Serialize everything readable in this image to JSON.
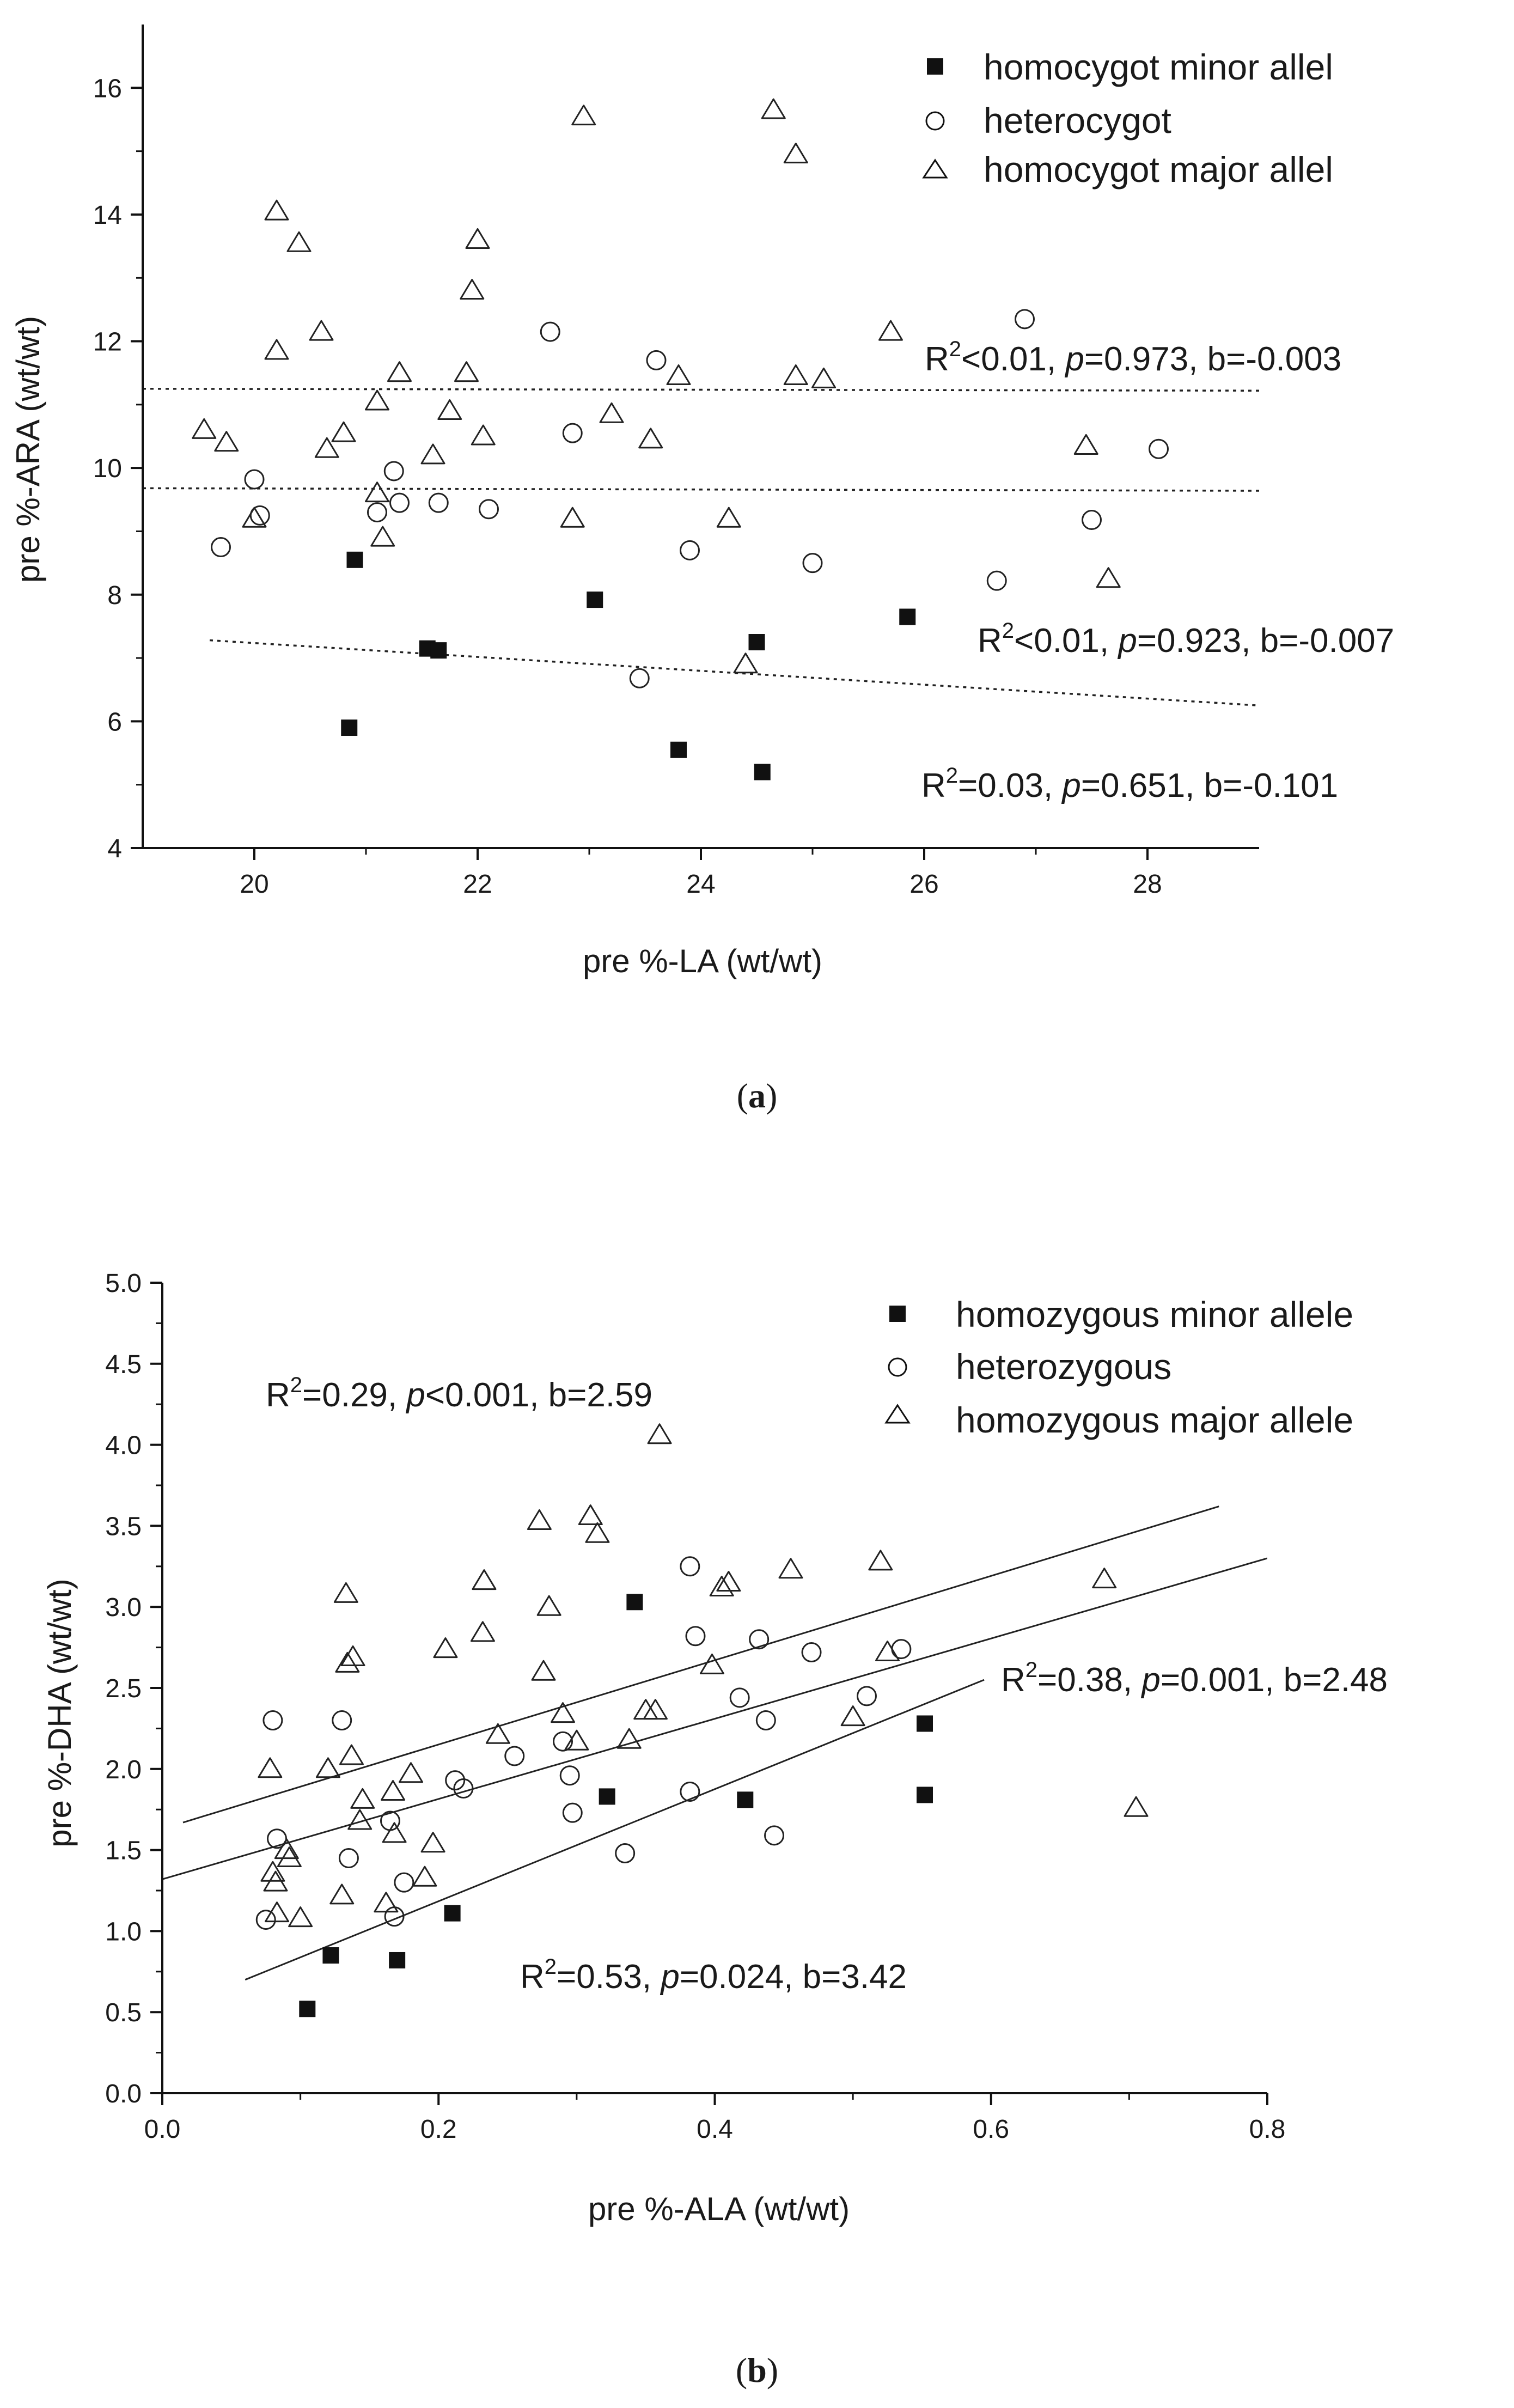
{
  "chart_data": [
    {
      "type": "scatter",
      "panel_label": "a",
      "xlabel": "pre %-LA (wt/wt)",
      "ylabel": "pre %-ARA (wt/wt)",
      "xlim": [
        19,
        29
      ],
      "ylim": [
        4,
        17
      ],
      "xticks": [
        20,
        22,
        24,
        26,
        28
      ],
      "yticks": [
        4,
        6,
        8,
        10,
        12,
        14,
        16
      ],
      "legend_position": "top-right",
      "series": [
        {
          "name": "homocygot minor allel",
          "marker": "filled-square",
          "points": [
            [
              20.9,
              8.55
            ],
            [
              20.85,
              5.9
            ],
            [
              21.55,
              7.15
            ],
            [
              21.65,
              7.12
            ],
            [
              23.05,
              7.92
            ],
            [
              23.8,
              5.55
            ],
            [
              24.5,
              7.25
            ],
            [
              24.55,
              5.2
            ],
            [
              25.85,
              7.65
            ]
          ]
        },
        {
          "name": "heterocygot",
          "marker": "open-circle",
          "points": [
            [
              19.7,
              8.75
            ],
            [
              20.0,
              9.82
            ],
            [
              20.05,
              9.25
            ],
            [
              21.1,
              9.3
            ],
            [
              21.25,
              9.95
            ],
            [
              21.3,
              9.45
            ],
            [
              21.65,
              9.45
            ],
            [
              22.1,
              9.35
            ],
            [
              22.65,
              12.15
            ],
            [
              22.85,
              10.55
            ],
            [
              23.45,
              6.68
            ],
            [
              23.6,
              11.7
            ],
            [
              23.9,
              8.7
            ],
            [
              25.0,
              8.5
            ],
            [
              26.65,
              8.22
            ],
            [
              26.9,
              12.35
            ],
            [
              27.5,
              9.18
            ],
            [
              28.1,
              10.3
            ]
          ]
        },
        {
          "name": "homocygot major allel",
          "marker": "open-triangle",
          "points": [
            [
              19.55,
              10.6
            ],
            [
              19.75,
              10.4
            ],
            [
              20.0,
              9.2
            ],
            [
              20.2,
              14.05
            ],
            [
              20.2,
              11.85
            ],
            [
              20.4,
              13.55
            ],
            [
              20.6,
              12.15
            ],
            [
              20.65,
              10.3
            ],
            [
              20.8,
              10.55
            ],
            [
              21.1,
              11.05
            ],
            [
              21.1,
              9.6
            ],
            [
              21.15,
              8.9
            ],
            [
              21.3,
              11.5
            ],
            [
              21.6,
              10.2
            ],
            [
              21.75,
              10.9
            ],
            [
              21.9,
              11.5
            ],
            [
              21.95,
              12.8
            ],
            [
              22.0,
              13.6
            ],
            [
              22.05,
              10.5
            ],
            [
              22.85,
              9.2
            ],
            [
              22.95,
              15.55
            ],
            [
              23.2,
              10.85
            ],
            [
              23.55,
              10.45
            ],
            [
              23.8,
              11.45
            ],
            [
              24.25,
              9.2
            ],
            [
              24.4,
              6.9
            ],
            [
              24.65,
              15.65
            ],
            [
              24.85,
              14.95
            ],
            [
              24.85,
              11.45
            ],
            [
              25.1,
              11.4
            ],
            [
              25.7,
              12.15
            ],
            [
              27.45,
              10.35
            ],
            [
              27.65,
              8.25
            ]
          ]
        }
      ],
      "fits": [
        {
          "label": "R²<0.01, p=0.973, b=-0.003",
          "x": [
            19.0,
            29.0
          ],
          "y": [
            11.25,
            11.22
          ],
          "style": "dotted"
        },
        {
          "label": "R²<0.01, p=0.923, b=-0.007",
          "x": [
            19.0,
            29.0
          ],
          "y": [
            9.68,
            9.64
          ],
          "style": "dotted"
        },
        {
          "label": "R²=0.03, p=0.651, b=-0.101",
          "x": [
            19.6,
            29.0
          ],
          "y": [
            7.28,
            6.25
          ],
          "style": "dotted"
        }
      ],
      "annotations": [
        {
          "r": "R",
          "sup": "2",
          "pre": "<0.01, ",
          "p": "p",
          "post": "=0.973, b=-0.003"
        },
        {
          "r": "R",
          "sup": "2",
          "pre": "<0.01, ",
          "p": "p",
          "post": "=0.923, b=-0.007"
        },
        {
          "r": "R",
          "sup": "2",
          "pre": "=0.03, ",
          "p": "p",
          "post": "=0.651, b=-0.101"
        }
      ]
    },
    {
      "type": "scatter",
      "panel_label": "b",
      "xlabel": "pre %-ALA (wt/wt)",
      "ylabel": "pre %-DHA (wt/wt)",
      "xlim": [
        0.0,
        0.8
      ],
      "ylim": [
        0.0,
        5.0
      ],
      "xticks": [
        "0.0",
        "0.2",
        "0.4",
        "0.6",
        "0.8"
      ],
      "yticks": [
        "0.0",
        "0.5",
        "1.0",
        "1.5",
        "2.0",
        "2.5",
        "3.0",
        "3.5",
        "4.0",
        "4.5",
        "5.0"
      ],
      "legend_position": "top-right",
      "series": [
        {
          "name": "homozygous minor allele",
          "marker": "filled-square",
          "points": [
            [
              0.105,
              0.52
            ],
            [
              0.122,
              0.85
            ],
            [
              0.17,
              0.82
            ],
            [
              0.21,
              1.11
            ],
            [
              0.322,
              1.83
            ],
            [
              0.342,
              3.03
            ],
            [
              0.422,
              1.81
            ],
            [
              0.552,
              2.28
            ],
            [
              0.552,
              1.84
            ]
          ]
        },
        {
          "name": "heterozygous",
          "marker": "open-circle",
          "points": [
            [
              0.075,
              1.07
            ],
            [
              0.08,
              2.3
            ],
            [
              0.083,
              1.57
            ],
            [
              0.13,
              2.3
            ],
            [
              0.135,
              1.45
            ],
            [
              0.165,
              1.68
            ],
            [
              0.168,
              1.09
            ],
            [
              0.175,
              1.3
            ],
            [
              0.212,
              1.93
            ],
            [
              0.218,
              1.88
            ],
            [
              0.255,
              2.08
            ],
            [
              0.29,
              2.17
            ],
            [
              0.295,
              1.96
            ],
            [
              0.297,
              1.73
            ],
            [
              0.335,
              1.48
            ],
            [
              0.382,
              1.86
            ],
            [
              0.382,
              3.25
            ],
            [
              0.386,
              2.82
            ],
            [
              0.418,
              2.44
            ],
            [
              0.432,
              2.8
            ],
            [
              0.437,
              2.3
            ],
            [
              0.443,
              1.59
            ],
            [
              0.47,
              2.72
            ],
            [
              0.51,
              2.45
            ],
            [
              0.535,
              2.74
            ]
          ]
        },
        {
          "name": "homozygous major allele",
          "marker": "open-triangle",
          "points": [
            [
              0.078,
              2.0
            ],
            [
              0.08,
              1.36
            ],
            [
              0.082,
              1.3
            ],
            [
              0.083,
              1.11
            ],
            [
              0.09,
              1.5
            ],
            [
              0.092,
              1.45
            ],
            [
              0.1,
              1.08
            ],
            [
              0.12,
              2.0
            ],
            [
              0.13,
              1.22
            ],
            [
              0.133,
              3.08
            ],
            [
              0.134,
              2.65
            ],
            [
              0.137,
              2.08
            ],
            [
              0.138,
              2.69
            ],
            [
              0.143,
              1.68
            ],
            [
              0.145,
              1.81
            ],
            [
              0.162,
              1.17
            ],
            [
              0.167,
              1.86
            ],
            [
              0.168,
              1.6
            ],
            [
              0.18,
              1.97
            ],
            [
              0.19,
              1.33
            ],
            [
              0.196,
              1.54
            ],
            [
              0.205,
              2.74
            ],
            [
              0.232,
              2.84
            ],
            [
              0.233,
              3.16
            ],
            [
              0.243,
              2.21
            ],
            [
              0.273,
              3.53
            ],
            [
              0.276,
              2.6
            ],
            [
              0.28,
              3.0
            ],
            [
              0.29,
              2.34
            ],
            [
              0.3,
              2.17
            ],
            [
              0.31,
              3.56
            ],
            [
              0.315,
              3.45
            ],
            [
              0.338,
              2.18
            ],
            [
              0.35,
              2.36
            ],
            [
              0.357,
              2.36
            ],
            [
              0.36,
              4.06
            ],
            [
              0.398,
              2.64
            ],
            [
              0.405,
              3.12
            ],
            [
              0.41,
              3.15
            ],
            [
              0.455,
              3.23
            ],
            [
              0.5,
              2.32
            ],
            [
              0.52,
              3.28
            ],
            [
              0.525,
              2.72
            ],
            [
              0.682,
              3.17
            ],
            [
              0.705,
              1.76
            ]
          ]
        }
      ],
      "fits": [
        {
          "label": "R²=0.29, p<0.001, b=2.59",
          "x": [
            0.015,
            0.765
          ],
          "y": [
            1.67,
            3.62
          ],
          "style": "solid"
        },
        {
          "label": "R²=0.38, p=0.001, b=2.48",
          "x": [
            0.0,
            0.8
          ],
          "y": [
            1.32,
            3.3
          ],
          "style": "solid"
        },
        {
          "label": "R²=0.53, p=0.024, b=3.42",
          "x": [
            0.06,
            0.595
          ],
          "y": [
            0.7,
            2.55
          ],
          "style": "solid"
        }
      ],
      "annotations": [
        {
          "r": "R",
          "sup": "2",
          "pre": "=0.29, ",
          "p": "p",
          "post": "<0.001, b=2.59"
        },
        {
          "r": "R",
          "sup": "2",
          "pre": "=0.38, ",
          "p": "p",
          "post": "=0.001, b=2.48"
        },
        {
          "r": "R",
          "sup": "2",
          "pre": "=0.53, ",
          "p": "p",
          "post": "=0.024, b=3.42"
        }
      ]
    }
  ]
}
